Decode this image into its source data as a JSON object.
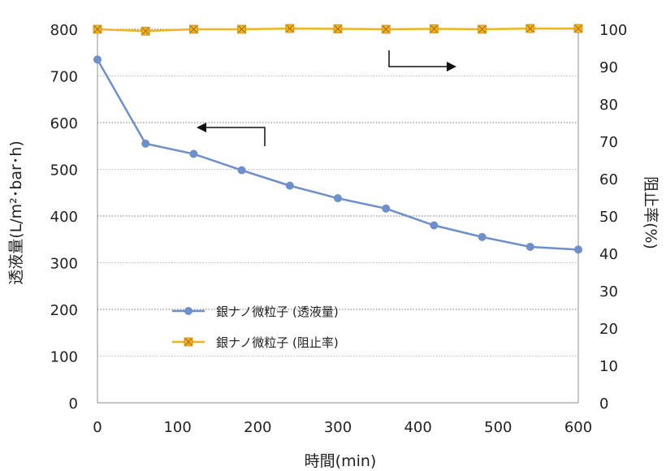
{
  "chart_data": {
    "type": "line",
    "x_values": [
      0,
      60,
      120,
      180,
      240,
      300,
      360,
      420,
      480,
      540,
      600
    ],
    "xlabel": "時間(min)",
    "ylabel_left": "透液量(L/m²･bar･h)",
    "ylabel_right": "阻止率(%)",
    "x_range": [
      0,
      600
    ],
    "x_ticks": [
      0,
      100,
      200,
      300,
      400,
      500,
      600
    ],
    "y_left_range": [
      0,
      800
    ],
    "y_left_ticks": [
      0,
      100,
      200,
      300,
      400,
      500,
      600,
      700,
      800
    ],
    "y_right_range": [
      0,
      100
    ],
    "y_right_ticks": [
      0,
      10,
      20,
      30,
      40,
      50,
      60,
      70,
      80,
      90,
      100
    ],
    "grid": true,
    "legend_placement": "center-left",
    "series": [
      {
        "name": "銀ナノ微粒子 (透液量)",
        "axis": "left",
        "marker": "circle",
        "color": "#6d8fcb",
        "values": [
          735,
          555,
          533,
          498,
          465,
          438,
          416,
          380,
          355,
          334,
          328
        ]
      },
      {
        "name": "銀ナノ微粒子 (阻止率)",
        "axis": "right",
        "marker": "square-x",
        "color": "#f0b323",
        "values": [
          100,
          99.5,
          100,
          100,
          100.2,
          100.1,
          100,
          100.1,
          100,
          100.2,
          100.2
        ]
      }
    ]
  }
}
